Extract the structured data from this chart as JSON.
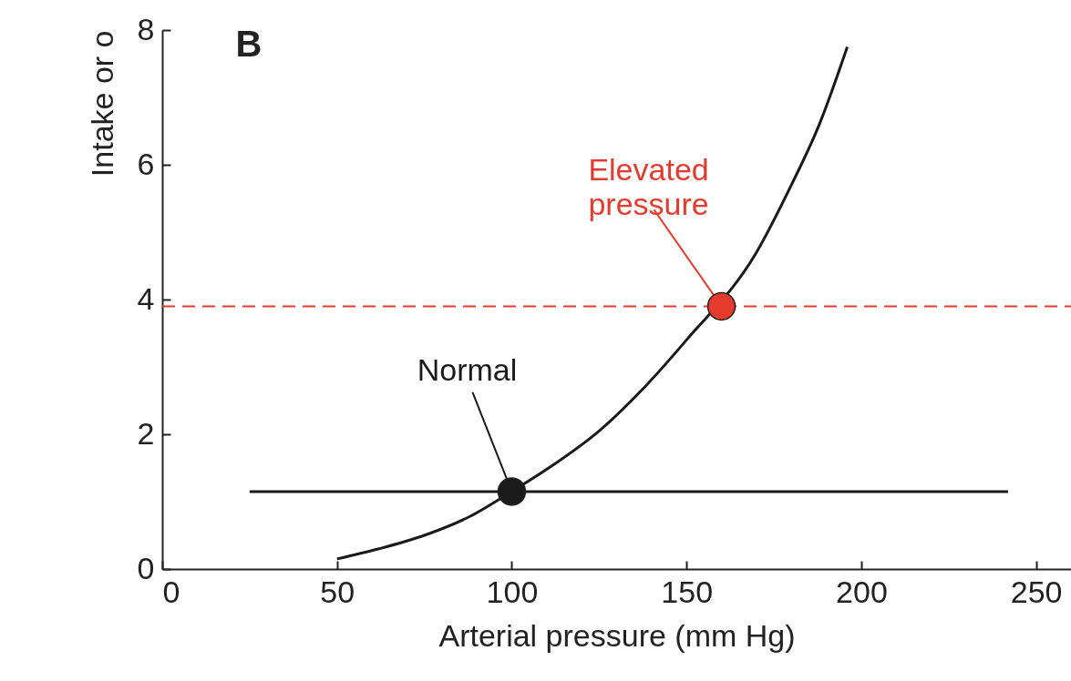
{
  "chart_data": {
    "type": "line",
    "xlabel": "Arterial pressure (mm Hg)",
    "ylabel": "Intake or o",
    "xlim": [
      0,
      260
    ],
    "xticks": [
      0,
      50,
      100,
      150,
      200,
      250
    ],
    "ylim": [
      0,
      8
    ],
    "yticks": [
      0,
      2,
      4,
      6,
      8
    ],
    "line_style": "solid",
    "series": [
      {
        "color": "#1a1a1a",
        "x": [
          50,
          62,
          75,
          88,
          100,
          112,
          125,
          138,
          150,
          170,
          180,
          188,
          196
        ],
        "values": [
          0.15,
          0.3,
          0.5,
          0.78,
          1.15,
          1.55,
          2.05,
          2.7,
          3.4,
          4.7,
          5.7,
          6.6,
          7.75
        ]
      },
      {
        "color": "#1a1a1a",
        "x": [
          25,
          242
        ],
        "values": [
          1.15,
          1.15
        ]
      },
      {
        "type": "scatter",
        "marker": "circle",
        "color": "#1a1a1a",
        "x": [
          100
        ],
        "values": [
          1.15
        ]
      },
      {
        "type": "scatter",
        "marker": "circle",
        "color": "#e53b2e",
        "x": [
          160
        ],
        "values": [
          3.9
        ]
      }
    ],
    "ref_lines": [
      {
        "axis": "y",
        "value": 3.9,
        "color": "#e53b2e",
        "line_style": "dashed"
      }
    ],
    "annotations": [
      "B",
      {
        "text": "Normal",
        "x": 100,
        "y": 1.15
      },
      {
        "text": "Elevated pressure",
        "x": 160,
        "y": 3.9
      }
    ]
  }
}
